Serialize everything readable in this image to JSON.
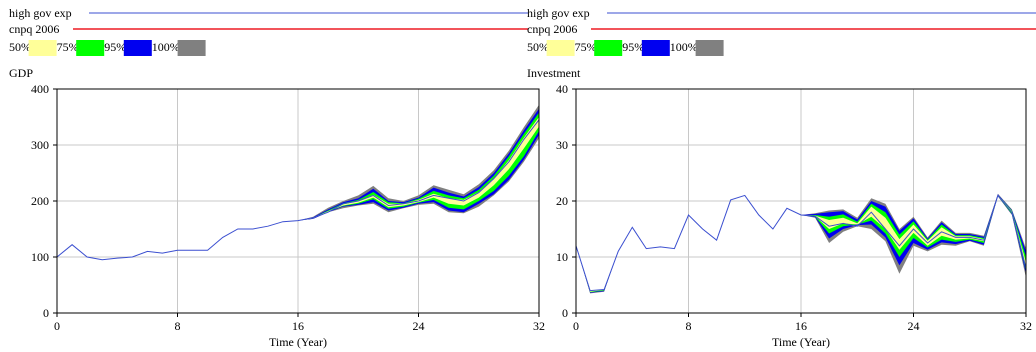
{
  "legend": {
    "series": [
      {
        "name": "high gov exp",
        "color": "#3b4fd0"
      },
      {
        "name": "cnpq 2006",
        "color": "#ee1c24"
      }
    ],
    "bands": [
      {
        "label": "50%",
        "color": "#ffff99"
      },
      {
        "label": "75%",
        "color": "#00ff00"
      },
      {
        "label": "95%",
        "color": "#0000f0"
      },
      {
        "label": "100%",
        "color": "#808080"
      }
    ]
  },
  "chart_data": [
    {
      "type": "area",
      "title": "GDP",
      "xlabel": "Time (Year)",
      "ylabel": "GDP",
      "xlim": [
        0,
        32
      ],
      "ylim": [
        0,
        400
      ],
      "xticks": [
        0,
        8,
        16,
        24,
        32
      ],
      "yticks": [
        0,
        100,
        200,
        300,
        400
      ],
      "grid": true,
      "x": [
        0,
        1,
        2,
        3,
        4,
        5,
        6,
        7,
        8,
        9,
        10,
        11,
        12,
        13,
        14,
        15,
        16,
        17,
        18,
        19,
        20,
        21,
        22,
        23,
        24,
        25,
        26,
        27,
        28,
        29,
        30,
        31,
        32
      ],
      "main_line": [
        100,
        122,
        100,
        95,
        98,
        100,
        110,
        107,
        112,
        112,
        112,
        135,
        150,
        150,
        155,
        163,
        165,
        170,
        180,
        195,
        200,
        210,
        192,
        195,
        200,
        210,
        205,
        200,
        215,
        240,
        270,
        310,
        345
      ],
      "band_100_upper": [
        100,
        122,
        100,
        95,
        98,
        100,
        110,
        107,
        112,
        112,
        112,
        135,
        150,
        150,
        155,
        163,
        165,
        172,
        188,
        200,
        210,
        227,
        205,
        200,
        210,
        228,
        220,
        212,
        230,
        255,
        290,
        332,
        372
      ],
      "band_100_lower": [
        100,
        122,
        100,
        95,
        98,
        100,
        110,
        107,
        112,
        112,
        112,
        135,
        150,
        150,
        155,
        163,
        165,
        168,
        180,
        187,
        192,
        195,
        180,
        187,
        193,
        195,
        180,
        178,
        190,
        210,
        235,
        270,
        312
      ],
      "band_95_upper": [
        100,
        122,
        100,
        95,
        98,
        100,
        110,
        107,
        112,
        112,
        112,
        135,
        150,
        150,
        155,
        163,
        165,
        171,
        185,
        198,
        205,
        222,
        200,
        198,
        206,
        224,
        215,
        208,
        225,
        250,
        285,
        326,
        365
      ],
      "band_95_lower": [
        100,
        122,
        100,
        95,
        98,
        100,
        110,
        107,
        112,
        112,
        112,
        135,
        150,
        150,
        155,
        163,
        165,
        168,
        180,
        190,
        193,
        198,
        183,
        188,
        195,
        198,
        183,
        180,
        195,
        212,
        238,
        274,
        318
      ],
      "band_75_upper": [
        100,
        122,
        100,
        95,
        98,
        100,
        110,
        107,
        112,
        112,
        112,
        135,
        150,
        150,
        155,
        163,
        165,
        170,
        183,
        196,
        202,
        216,
        198,
        196,
        204,
        218,
        210,
        205,
        220,
        245,
        280,
        320,
        358
      ],
      "band_75_lower": [
        100,
        122,
        100,
        95,
        98,
        100,
        110,
        107,
        112,
        112,
        112,
        135,
        150,
        150,
        155,
        163,
        165,
        169,
        181,
        191,
        195,
        203,
        186,
        190,
        197,
        202,
        188,
        185,
        200,
        218,
        245,
        280,
        325
      ],
      "band_50_upper": [
        100,
        122,
        100,
        95,
        98,
        100,
        110,
        107,
        112,
        112,
        112,
        135,
        150,
        150,
        155,
        163,
        165,
        170,
        182,
        194,
        200,
        211,
        195,
        195,
        202,
        213,
        205,
        202,
        216,
        240,
        273,
        313,
        350
      ],
      "band_50_lower": [
        100,
        122,
        100,
        95,
        98,
        100,
        110,
        107,
        112,
        112,
        112,
        135,
        150,
        150,
        155,
        163,
        165,
        169,
        181,
        192,
        197,
        206,
        189,
        192,
        198,
        206,
        195,
        192,
        206,
        228,
        257,
        294,
        333
      ]
    },
    {
      "type": "area",
      "title": "Investment",
      "xlabel": "Time (Year)",
      "ylabel": "Investment",
      "xlim": [
        0,
        32
      ],
      "ylim": [
        0,
        40
      ],
      "xticks": [
        0,
        8,
        16,
        24,
        32
      ],
      "yticks": [
        0,
        10,
        20,
        30,
        40
      ],
      "grid": true,
      "x": [
        0,
        1,
        2,
        3,
        4,
        5,
        6,
        7,
        8,
        9,
        10,
        11,
        12,
        13,
        14,
        15,
        16,
        17,
        18,
        19,
        20,
        21,
        22,
        23,
        24,
        25,
        26,
        27,
        28,
        29,
        30,
        31,
        32
      ],
      "main_line": [
        12,
        4,
        4.2,
        11,
        15.3,
        11.5,
        11.8,
        11.5,
        17.5,
        15,
        13,
        20.2,
        21,
        17.5,
        15,
        18.7,
        17.5,
        17.3,
        15.5,
        16,
        15.5,
        18,
        15,
        12,
        15,
        12.5,
        14.5,
        13.5,
        13.5,
        13,
        21,
        18,
        8
      ],
      "band_100_upper": [
        12,
        4,
        4.2,
        11,
        15.3,
        11.5,
        11.8,
        11.5,
        17.5,
        15,
        13,
        20.2,
        21,
        17.5,
        15,
        18.7,
        17.5,
        17.8,
        18.3,
        18.5,
        17,
        20.5,
        19.5,
        15,
        17.2,
        13.5,
        16.5,
        14.3,
        14.3,
        13.8,
        21.3,
        18.5,
        11.5
      ],
      "band_100_lower": [
        12,
        3.5,
        3.8,
        11,
        15.3,
        11.5,
        11.8,
        11.5,
        17.5,
        15,
        13,
        20.2,
        21,
        17.5,
        15,
        18.7,
        17.5,
        17,
        12.5,
        14.5,
        15.5,
        15,
        12.8,
        7,
        12,
        11,
        12.2,
        12,
        12.8,
        12,
        20.8,
        17.5,
        6.3
      ],
      "band_95_upper": [
        12,
        3.8,
        4.1,
        11,
        15.3,
        11.5,
        11.8,
        11.5,
        17.5,
        15,
        13,
        20.2,
        21,
        17.5,
        15,
        18.7,
        17.5,
        17.7,
        18,
        18.2,
        16.7,
        20,
        19,
        14.7,
        16.9,
        13.3,
        16.2,
        14.1,
        14.1,
        13.6,
        21.2,
        18.4,
        11
      ],
      "band_95_lower": [
        12,
        3.6,
        3.9,
        11,
        15.3,
        11.5,
        11.8,
        11.5,
        17.5,
        15,
        13,
        20.2,
        21,
        17.5,
        15,
        18.7,
        17.5,
        17.1,
        13.3,
        15,
        15.7,
        15.8,
        13.5,
        8.5,
        12.5,
        11.3,
        12.6,
        12.3,
        12.9,
        12.2,
        20.9,
        17.6,
        7
      ],
      "band_75_upper": [
        12,
        3.9,
        4.15,
        11,
        15.3,
        11.5,
        11.8,
        11.5,
        17.5,
        15,
        13,
        20.2,
        21,
        17.5,
        15,
        18.7,
        17.5,
        17.5,
        17.2,
        17.6,
        16.3,
        19.5,
        18,
        14,
        16.4,
        13.1,
        15.8,
        13.9,
        13.9,
        13.4,
        21.1,
        18.3,
        10
      ],
      "band_75_lower": [
        12,
        3.7,
        4,
        11,
        15.3,
        11.5,
        11.8,
        11.5,
        17.5,
        15,
        13,
        20.2,
        21,
        17.5,
        15,
        18.7,
        17.5,
        17.2,
        14.2,
        15.5,
        15.8,
        16.5,
        14.2,
        10,
        13.4,
        11.7,
        13.1,
        12.7,
        13.1,
        12.5,
        20.9,
        17.7,
        7.5
      ],
      "band_50_upper": [
        12,
        4,
        4.2,
        11,
        15.3,
        11.5,
        11.8,
        11.5,
        17.5,
        15,
        13,
        20.2,
        21,
        17.5,
        15,
        18.7,
        17.5,
        17.4,
        16.6,
        17,
        16,
        19,
        17,
        13.2,
        15.8,
        12.9,
        15.3,
        13.7,
        13.7,
        13.2,
        21.1,
        18.2,
        9
      ],
      "band_50_lower": [
        12,
        3.8,
        4.1,
        11,
        15.3,
        11.5,
        11.8,
        11.5,
        17.5,
        15,
        13,
        20.2,
        21,
        17.5,
        15,
        18.7,
        17.5,
        17.3,
        15,
        16,
        15.8,
        17.2,
        15,
        11.3,
        14.3,
        12,
        13.8,
        13.1,
        13.3,
        12.8,
        21,
        17.9,
        8.2
      ]
    }
  ]
}
